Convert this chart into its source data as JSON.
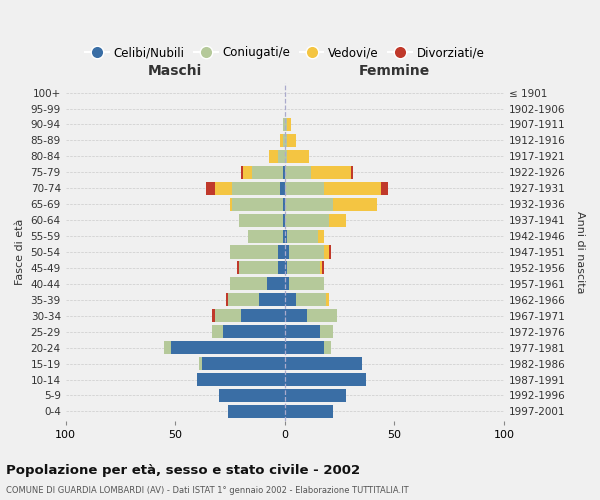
{
  "age_groups": [
    "0-4",
    "5-9",
    "10-14",
    "15-19",
    "20-24",
    "25-29",
    "30-34",
    "35-39",
    "40-44",
    "45-49",
    "50-54",
    "55-59",
    "60-64",
    "65-69",
    "70-74",
    "75-79",
    "80-84",
    "85-89",
    "90-94",
    "95-99",
    "100+"
  ],
  "birth_years": [
    "1997-2001",
    "1992-1996",
    "1987-1991",
    "1982-1986",
    "1977-1981",
    "1972-1976",
    "1967-1971",
    "1962-1966",
    "1957-1961",
    "1952-1956",
    "1947-1951",
    "1942-1946",
    "1937-1941",
    "1932-1936",
    "1927-1931",
    "1922-1926",
    "1917-1921",
    "1912-1916",
    "1907-1911",
    "1902-1906",
    "≤ 1901"
  ],
  "maschi": {
    "celibi": [
      26,
      30,
      40,
      38,
      52,
      28,
      20,
      12,
      8,
      3,
      3,
      1,
      1,
      1,
      2,
      1,
      0,
      0,
      0,
      0,
      0
    ],
    "coniugati": [
      0,
      0,
      0,
      1,
      3,
      5,
      12,
      14,
      17,
      18,
      22,
      16,
      20,
      23,
      22,
      14,
      3,
      1,
      1,
      0,
      0
    ],
    "vedovi": [
      0,
      0,
      0,
      0,
      0,
      0,
      0,
      0,
      0,
      0,
      0,
      0,
      0,
      1,
      8,
      4,
      4,
      1,
      0,
      0,
      0
    ],
    "divorziati": [
      0,
      0,
      0,
      0,
      0,
      0,
      1,
      1,
      0,
      1,
      0,
      0,
      0,
      0,
      4,
      1,
      0,
      0,
      0,
      0,
      0
    ]
  },
  "femmine": {
    "nubili": [
      22,
      28,
      37,
      35,
      18,
      16,
      10,
      5,
      2,
      1,
      2,
      1,
      0,
      0,
      0,
      0,
      0,
      0,
      0,
      0,
      0
    ],
    "coniugate": [
      0,
      0,
      0,
      0,
      3,
      6,
      14,
      14,
      16,
      15,
      16,
      14,
      20,
      22,
      18,
      12,
      1,
      1,
      1,
      0,
      0
    ],
    "vedove": [
      0,
      0,
      0,
      0,
      0,
      0,
      0,
      1,
      0,
      1,
      2,
      3,
      8,
      20,
      26,
      18,
      10,
      4,
      2,
      0,
      0
    ],
    "divorziate": [
      0,
      0,
      0,
      0,
      0,
      0,
      0,
      0,
      0,
      1,
      1,
      0,
      0,
      0,
      3,
      1,
      0,
      0,
      0,
      0,
      0
    ]
  },
  "colors": {
    "celibi": "#3a6ea5",
    "coniugati": "#b5c99a",
    "vedovi": "#f4c542",
    "divorziati": "#c0392b"
  },
  "xlim": 100,
  "title": "Popolazione per età, sesso e stato civile - 2002",
  "subtitle": "COMUNE DI GUARDIA LOMBARDI (AV) - Dati ISTAT 1° gennaio 2002 - Elaborazione TUTTITALIA.IT",
  "ylabel_left": "Fasce di età",
  "ylabel_right": "Anni di nascita",
  "xlabel_left": "Maschi",
  "xlabel_right": "Femmine",
  "background_color": "#f0f0f0"
}
